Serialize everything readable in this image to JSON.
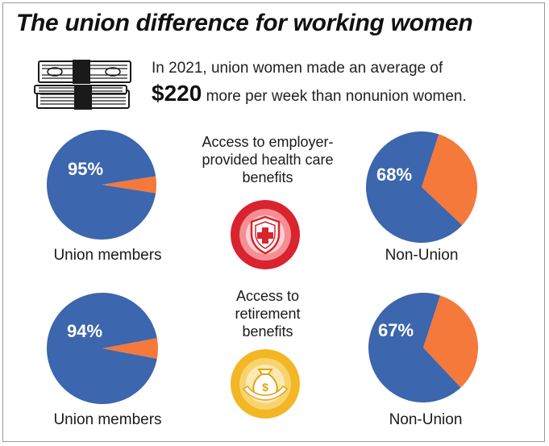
{
  "title": "The union difference for working women",
  "intro": {
    "line1": "In 2021, union women made an average of",
    "amount": "$220",
    "line2_rest": "more per week than nonunion women."
  },
  "icons": {
    "money": "money-stack-icon",
    "health": "health-shield-icon",
    "retirement": "money-bag-icon"
  },
  "colors": {
    "blue": "#3c66ad",
    "orange": "#f5793a",
    "health_badge": "#d9232e",
    "retirement_badge": "#f3b726"
  },
  "sections": [
    {
      "label_lines": [
        "Access to employer-",
        "provided health care",
        "benefits"
      ]
    },
    {
      "label_lines": [
        "Access to",
        "retirement",
        "benefits"
      ]
    }
  ],
  "chart_data": [
    {
      "type": "pie",
      "benefit": "health",
      "group": "Union members",
      "label": "95%",
      "values": [
        95,
        5
      ]
    },
    {
      "type": "pie",
      "benefit": "health",
      "group": "Non-Union",
      "label": "68%",
      "values": [
        68,
        32
      ]
    },
    {
      "type": "pie",
      "benefit": "retirement",
      "group": "Union members",
      "label": "94%",
      "values": [
        94,
        6
      ]
    },
    {
      "type": "pie",
      "benefit": "retirement",
      "group": "Non-Union",
      "label": "67%",
      "values": [
        67,
        33
      ]
    }
  ]
}
